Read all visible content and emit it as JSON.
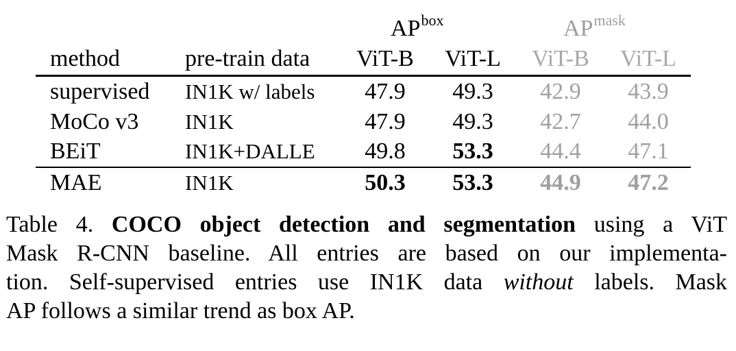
{
  "table": {
    "group_headers": {
      "box": {
        "base": "AP",
        "sup": "box"
      },
      "mask": {
        "base": "AP",
        "sup": "mask"
      }
    },
    "columns": {
      "method": "method",
      "pretrain": "pre-train data",
      "box_vitb": "ViT-B",
      "box_vitl": "ViT-L",
      "mask_vitb": "ViT-B",
      "mask_vitl": "ViT-L"
    },
    "rows": [
      {
        "method": "supervised",
        "pretrain": "IN1K w/ labels",
        "box_vitb": "47.9",
        "box_vitl": "49.3",
        "mask_vitb": "42.9",
        "mask_vitl": "43.9"
      },
      {
        "method": "MoCo v3",
        "pretrain": "IN1K",
        "box_vitb": "47.9",
        "box_vitl": "49.3",
        "mask_vitb": "42.7",
        "mask_vitl": "44.0"
      },
      {
        "method": "BEiT",
        "pretrain": "IN1K+DALLE",
        "box_vitb": "49.8",
        "box_vitl": "53.3",
        "mask_vitb": "44.4",
        "mask_vitl": "47.1"
      },
      {
        "method": "MAE",
        "pretrain": "IN1K",
        "box_vitb": "50.3",
        "box_vitl": "53.3",
        "mask_vitb": "44.9",
        "mask_vitl": "47.2"
      }
    ]
  },
  "caption": {
    "label": "Table 4.",
    "title": "COCO object detection and segmentation",
    "text_1": "using a ViT",
    "text_2": "Mask R-CNN baseline.  All entries are based on our implementa-",
    "text_3a": "tion.  Self-supervised entries use IN1K data",
    "text_3_em": "without",
    "text_3b": "labels.  Mask",
    "text_4": "AP follows a similar trend as box AP."
  }
}
